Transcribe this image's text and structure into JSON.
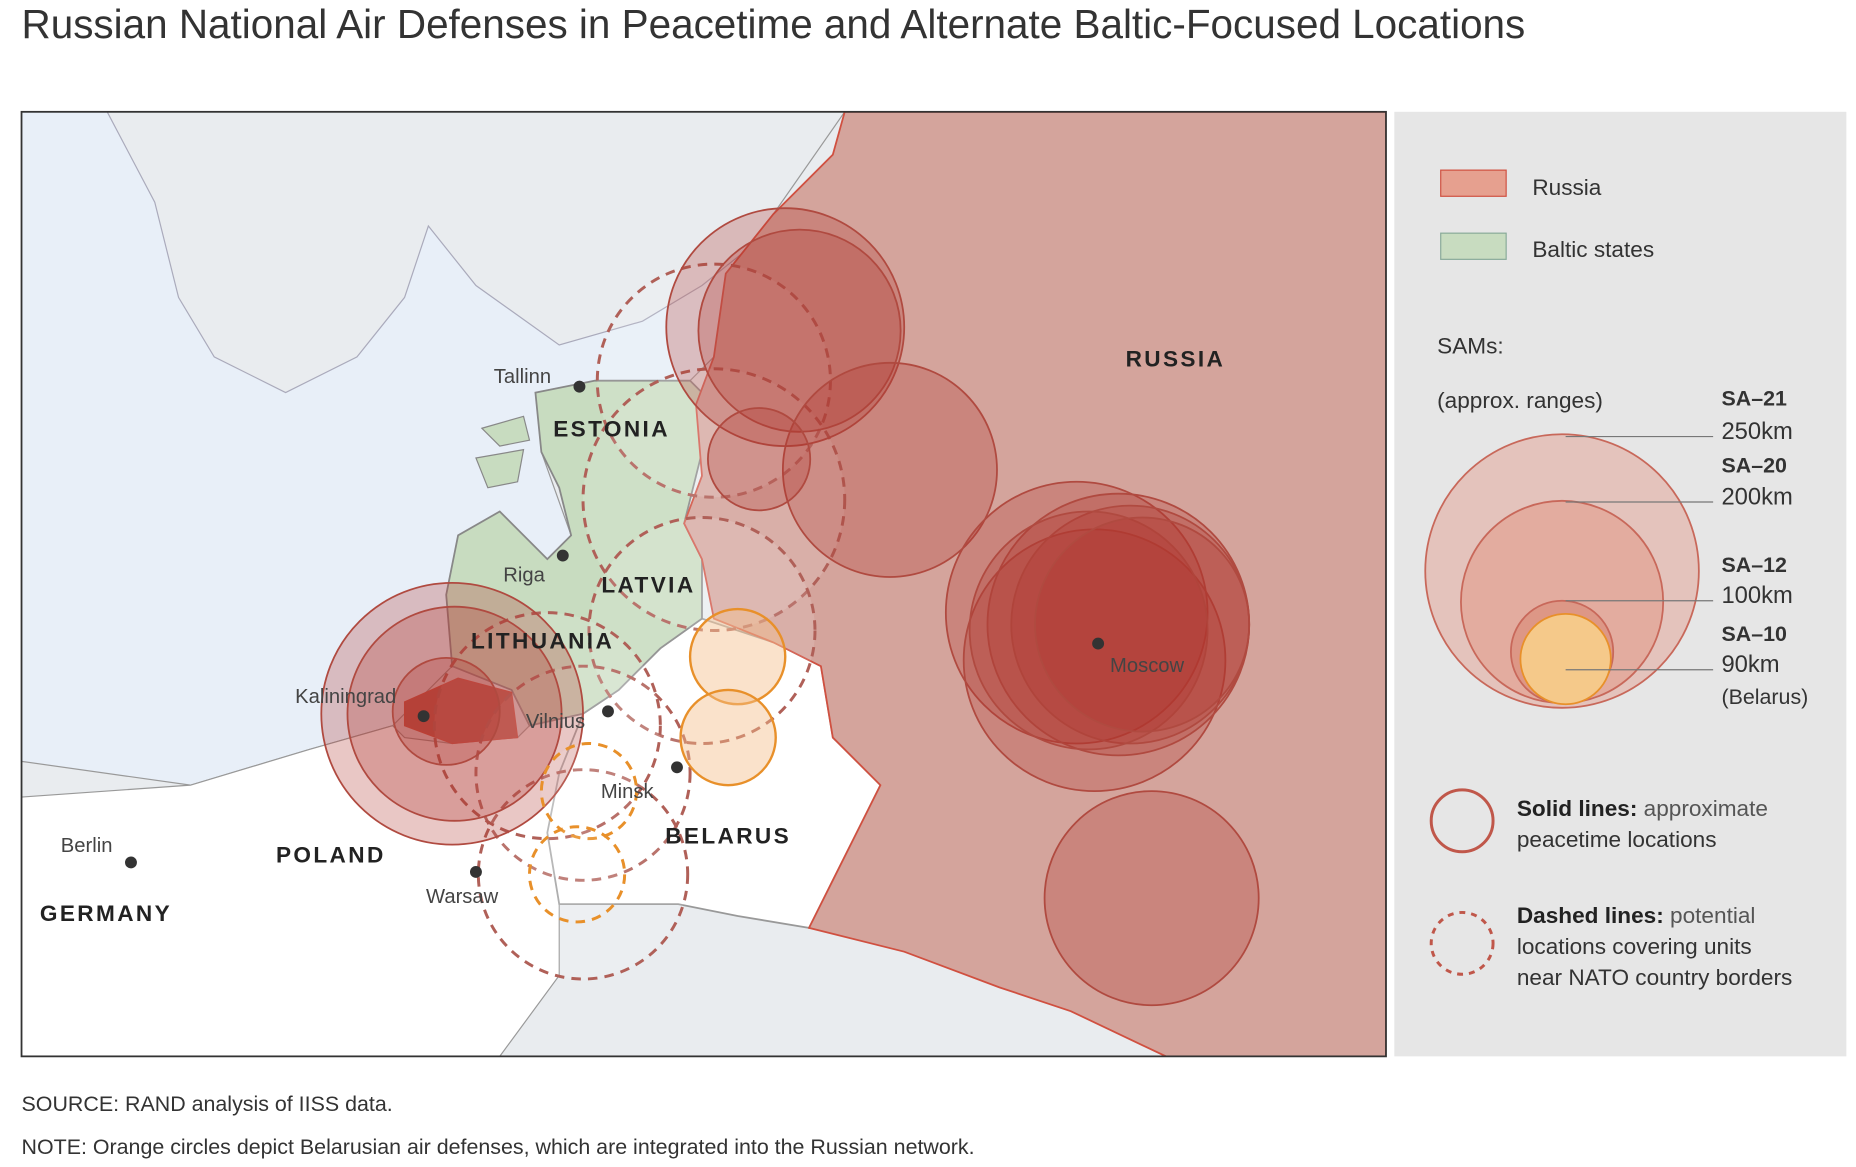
{
  "title": "Russian National Air Defenses in Peacetime and Alternate Baltic-Focused Locations",
  "map": {
    "countries": [
      "RUSSIA",
      "ESTONIA",
      "LATVIA",
      "LITHUANIA",
      "BELARUS",
      "POLAND",
      "GERMANY"
    ],
    "cities": [
      "Tallinn",
      "Riga",
      "Vilnius",
      "Minsk",
      "Kaliningrad",
      "Warsaw",
      "Berlin",
      "Moscow"
    ]
  },
  "legend": {
    "regions": [
      "Russia",
      "Baltic states"
    ],
    "sams_title": "SAMs:",
    "sams_subtitle": "(approx. ranges)",
    "sams": [
      {
        "name": "SA–21",
        "range": "250km"
      },
      {
        "name": "SA–20",
        "range": "200km"
      },
      {
        "name": "SA–12",
        "range": "100km"
      },
      {
        "name": "SA–10",
        "range": "90km",
        "note": "(Belarus)"
      }
    ],
    "solid": {
      "label": "Solid lines:",
      "lines": [
        "approximate",
        "peacetime locations"
      ]
    },
    "dashed": {
      "label": "Dashed lines:",
      "lines": [
        "potential",
        "locations covering units",
        "near NATO country borders"
      ]
    }
  },
  "footnotes": [
    "SOURCE: RAND analysis of IISS data.",
    "NOTE: Orange circles depict Belarusian air defenses, which are integrated into the Russian network."
  ]
}
